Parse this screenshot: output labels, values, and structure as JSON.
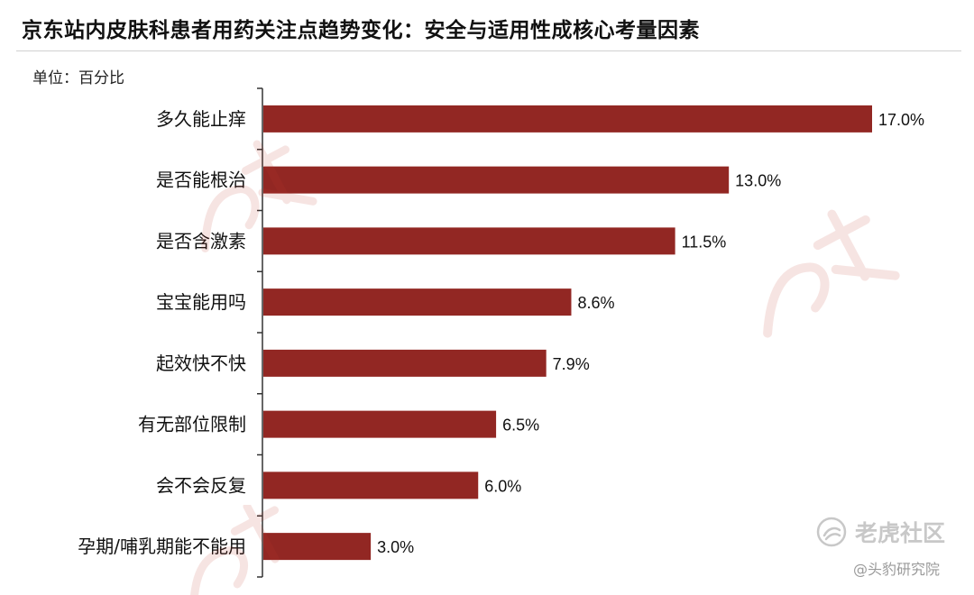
{
  "header": {
    "title": "京东站内皮肤科患者用药关注点趋势变化：安全与适用性成核心考量因素",
    "unit": "单位：百分比"
  },
  "colors": {
    "bar": "#922723",
    "axis": "#333333",
    "stamp": "#c0392b"
  },
  "icons": {
    "tiger_logo": "tiger-forum-logo-icon",
    "stamp": "leadleo-stamp-icon"
  },
  "watermark": {
    "logo_text": "老虎社区",
    "source": "@头豹研究院"
  },
  "chart_data": {
    "type": "bar",
    "orientation": "horizontal",
    "categories": [
      "多久能止痒",
      "是否能根治",
      "是否含激素",
      "宝宝能用吗",
      "起效快不快",
      "有无部位限制",
      "会不会反复",
      "孕期/哺乳期能不能用"
    ],
    "values": [
      17.0,
      13.0,
      11.5,
      8.6,
      7.9,
      6.5,
      6.0,
      3.0
    ],
    "value_labels": [
      "17.0%",
      "13.0%",
      "11.5%",
      "8.6%",
      "7.9%",
      "6.5%",
      "6.0%",
      "3.0%"
    ],
    "xlim": [
      0,
      17.0
    ],
    "grid": false,
    "legend": "none"
  }
}
